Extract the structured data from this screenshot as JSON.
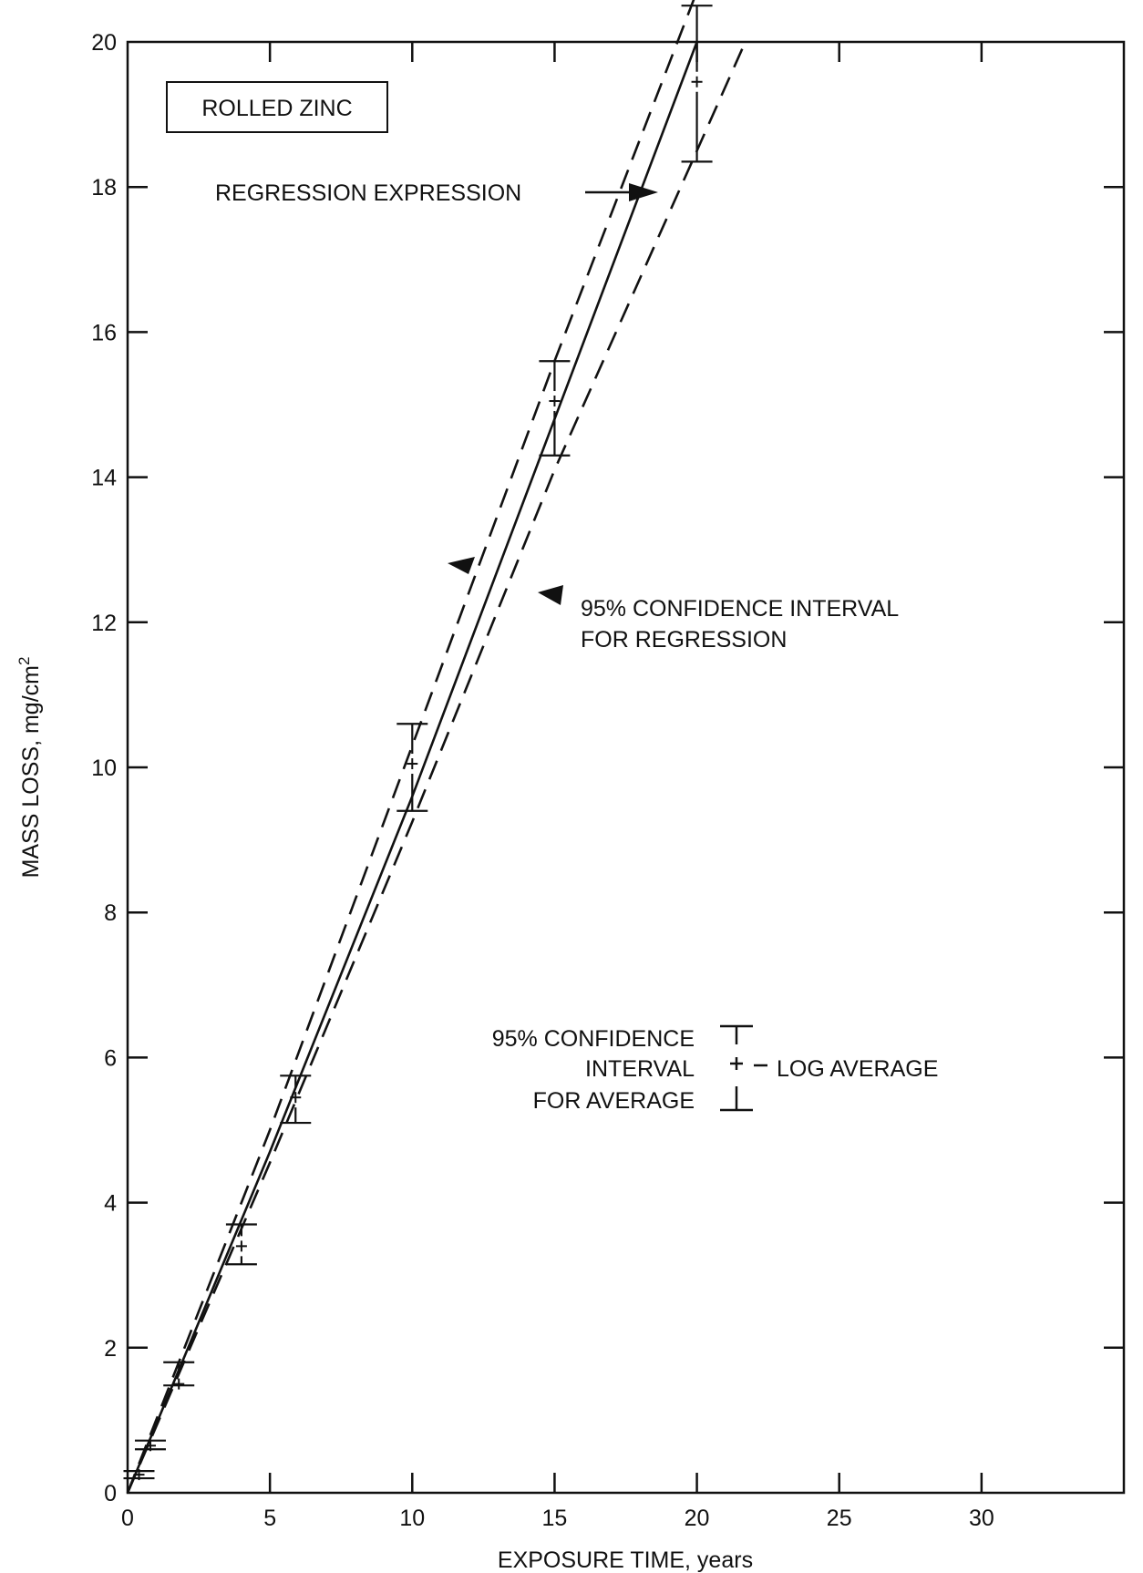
{
  "chart_data": {
    "type": "line",
    "title": "",
    "inset_label": "ROLLED ZINC",
    "xlabel": "EXPOSURE TIME, years",
    "ylabel_main": "MASS LOSS,  mg/cm",
    "ylabel_sup": "2",
    "xlim": [
      0,
      35
    ],
    "ylim": [
      0,
      20
    ],
    "x_ticks": [
      0,
      5,
      10,
      15,
      20,
      25,
      30
    ],
    "x_tick_labels": [
      "0",
      "5",
      "10",
      "15",
      "20",
      "25",
      "30"
    ],
    "y_ticks": [
      0,
      2,
      4,
      6,
      8,
      10,
      12,
      14,
      16,
      18,
      20
    ],
    "y_tick_labels": [
      "0",
      "2",
      "4",
      "6",
      "8",
      "10",
      "12",
      "14",
      "16",
      "18",
      "20"
    ],
    "grid": false,
    "series": [
      {
        "name": "REGRESSION EXPRESSION",
        "style": "solid",
        "x": [
          0,
          5,
          10,
          15,
          20
        ],
        "y": [
          0,
          4.7,
          9.6,
          14.8,
          20.0
        ]
      },
      {
        "name": "95% CONFIDENCE INTERVAL FOR REGRESSION (upper)",
        "style": "dashed",
        "x": [
          0,
          5,
          10,
          15,
          20.3
        ],
        "y": [
          0,
          5.0,
          10.3,
          15.6,
          21.0
        ]
      },
      {
        "name": "95% CONFIDENCE INTERVAL FOR REGRESSION (lower)",
        "style": "dashed",
        "x": [
          0,
          5,
          10,
          15,
          20,
          21.7
        ],
        "y": [
          0,
          4.55,
          9.25,
          14.1,
          18.5,
          20.0
        ]
      }
    ],
    "log_averages": [
      {
        "x": 0.4,
        "y": 0.25,
        "lo": 0.2,
        "hi": 0.3
      },
      {
        "x": 0.8,
        "y": 0.65,
        "lo": 0.6,
        "hi": 0.72
      },
      {
        "x": 1.8,
        "y": 1.5,
        "lo": 1.48,
        "hi": 1.8
      },
      {
        "x": 4.0,
        "y": 3.4,
        "lo": 3.15,
        "hi": 3.7
      },
      {
        "x": 5.9,
        "y": 5.45,
        "lo": 5.1,
        "hi": 5.75
      },
      {
        "x": 10.0,
        "y": 10.05,
        "lo": 9.4,
        "hi": 10.6
      },
      {
        "x": 15.0,
        "y": 15.05,
        "lo": 14.3,
        "hi": 15.6
      },
      {
        "x": 20.0,
        "y": 19.45,
        "lo": 18.35,
        "hi": 20.5
      }
    ],
    "annotations": {
      "regression": "REGRESSION EXPRESSION",
      "conf_reg_line1": "95% CONFIDENCE INTERVAL",
      "conf_reg_line2": "FOR REGRESSION",
      "legend_line1": "95% CONFIDENCE",
      "legend_line2": "INTERVAL",
      "legend_line3": "FOR AVERAGE",
      "legend_log": "LOG AVERAGE"
    }
  }
}
